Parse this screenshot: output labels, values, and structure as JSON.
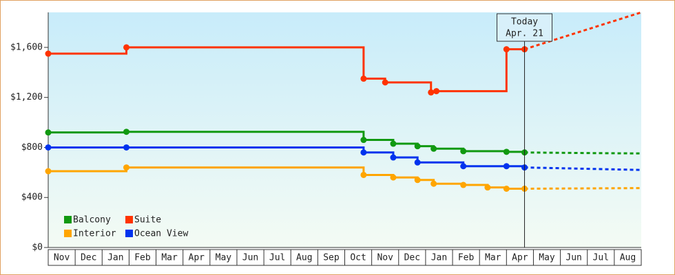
{
  "chart_data": {
    "type": "step-line",
    "xlim": [
      0,
      22
    ],
    "xticks": [
      {
        "value": 0,
        "label": "Nov"
      },
      {
        "value": 1,
        "label": "Dec"
      },
      {
        "value": 2,
        "label": "Jan"
      },
      {
        "value": 3,
        "label": "Feb"
      },
      {
        "value": 4,
        "label": "Mar"
      },
      {
        "value": 5,
        "label": "Apr"
      },
      {
        "value": 6,
        "label": "May"
      },
      {
        "value": 7,
        "label": "Jun"
      },
      {
        "value": 8,
        "label": "Jul"
      },
      {
        "value": 9,
        "label": "Aug"
      },
      {
        "value": 10,
        "label": "Sep"
      },
      {
        "value": 11,
        "label": "Oct"
      },
      {
        "value": 12,
        "label": "Nov"
      },
      {
        "value": 13,
        "label": "Dec"
      },
      {
        "value": 14,
        "label": "Jan"
      },
      {
        "value": 15,
        "label": "Feb"
      },
      {
        "value": 16,
        "label": "Mar"
      },
      {
        "value": 17,
        "label": "Apr"
      },
      {
        "value": 18,
        "label": "May"
      },
      {
        "value": 19,
        "label": "Jun"
      },
      {
        "value": 20,
        "label": "Jul"
      },
      {
        "value": 21,
        "label": "Aug"
      }
    ],
    "ylim": [
      0,
      1880
    ],
    "yticks": [
      {
        "value": 0,
        "label": "$0"
      },
      {
        "value": 400,
        "label": "$400"
      },
      {
        "value": 800,
        "label": "$800"
      },
      {
        "value": 1200,
        "label": "$1,200"
      },
      {
        "value": 1600,
        "label": "$1,600"
      }
    ],
    "annotation": {
      "x": 17.67,
      "lines": [
        "Today",
        "Apr. 21"
      ]
    },
    "series": [
      {
        "name": "Balcony",
        "color": "#119911",
        "x": [
          0,
          2.9,
          11.7,
          12.8,
          13.7,
          14.3,
          15.4,
          17.0,
          17.67
        ],
        "values": [
          920,
          925,
          860,
          830,
          810,
          790,
          770,
          765,
          760
        ],
        "forecast": {
          "x": [
            17.67,
            20,
            22
          ],
          "values": [
            760,
            755,
            752
          ]
        }
      },
      {
        "name": "Suite",
        "color": "#ff3300",
        "x": [
          0,
          2.9,
          11.7,
          12.5,
          14.2,
          14.4,
          17.0,
          17.67
        ],
        "values": [
          1550,
          1600,
          1350,
          1320,
          1240,
          1250,
          1585,
          1585
        ],
        "forecast": {
          "x": [
            17.67,
            22
          ],
          "values": [
            1585,
            1880
          ]
        }
      },
      {
        "name": "Interior",
        "color": "#ffa500",
        "x": [
          0,
          2.9,
          11.7,
          12.8,
          13.7,
          14.3,
          15.4,
          16.3,
          17.0,
          17.67
        ],
        "values": [
          610,
          640,
          580,
          560,
          540,
          510,
          500,
          480,
          470,
          470
        ],
        "forecast": {
          "x": [
            17.67,
            22
          ],
          "values": [
            470,
            475
          ]
        }
      },
      {
        "name": "Ocean View",
        "color": "#0033ee",
        "x": [
          0,
          2.9,
          11.7,
          12.8,
          13.7,
          15.4,
          17.0,
          17.67
        ],
        "values": [
          800,
          800,
          760,
          720,
          680,
          650,
          650,
          640
        ],
        "forecast": {
          "x": [
            17.67,
            22
          ],
          "values": [
            640,
            620
          ]
        }
      }
    ]
  }
}
